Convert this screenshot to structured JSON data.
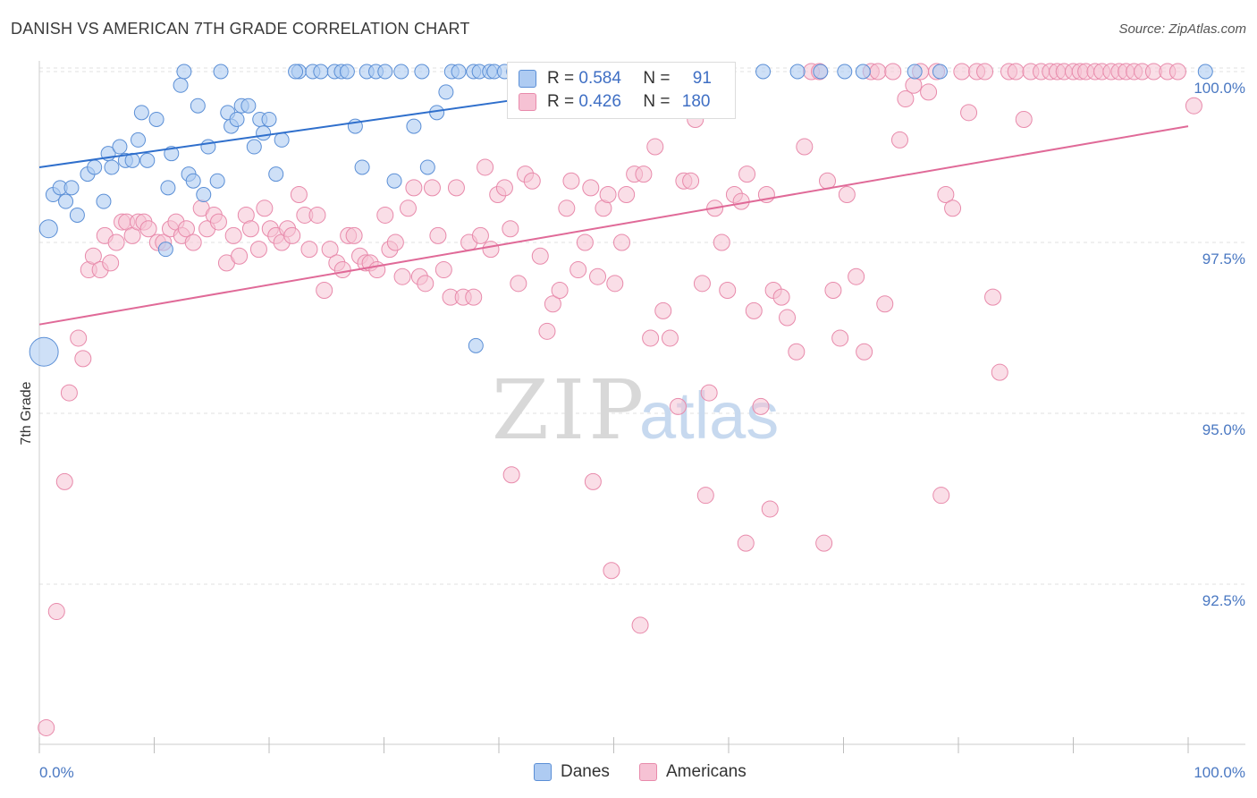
{
  "title": "DANISH VS AMERICAN 7TH GRADE CORRELATION CHART",
  "source": "Source: ZipAtlas.com",
  "watermark": {
    "zip": "ZIP",
    "atlas": "atlas"
  },
  "colors": {
    "danes_fill": "#aecbf2",
    "danes_stroke": "#5b8fd6",
    "danes_line": "#2f6fcc",
    "americans_fill": "#f6c2d4",
    "americans_stroke": "#e88aab",
    "americans_line": "#e06a98",
    "tick_label": "#4a78c2",
    "grid": "#e2e2e2"
  },
  "legend": {
    "rows": [
      {
        "r_label": "R = ",
        "r_value": "0.584",
        "n_label": "N = ",
        "n_value": "91"
      },
      {
        "r_label": "R = ",
        "r_value": "0.426",
        "n_label": "N = ",
        "n_value": "180"
      }
    ]
  },
  "bottom_legend": [
    {
      "label": "Danes"
    },
    {
      "label": "Americans"
    }
  ],
  "chart_data": {
    "type": "scatter",
    "title": "DANISH VS AMERICAN 7TH GRADE CORRELATION CHART",
    "xlabel": "",
    "ylabel": "7th Grade",
    "x_tick_labels": [
      "0.0%",
      "100.0%"
    ],
    "y_tick_labels": [
      "100.0%",
      "97.5%",
      "95.0%",
      "92.5%"
    ],
    "y_ticks": [
      100.0,
      97.5,
      95.0,
      92.5
    ],
    "xlim": [
      0,
      105
    ],
    "ylim": [
      90.2,
      100.2
    ],
    "grid": true,
    "legend_position": "top-center",
    "series": [
      {
        "name": "Danes",
        "r": 0.584,
        "n": 91,
        "trend": [
          [
            0,
            98.6
          ],
          [
            42,
            99.6
          ]
        ],
        "points": [
          [
            0.8,
            97.7
          ],
          [
            1.2,
            98.2
          ],
          [
            1.8,
            98.3
          ],
          [
            2.3,
            98.1
          ],
          [
            2.8,
            98.3
          ],
          [
            3.3,
            97.9
          ],
          [
            4.2,
            98.5
          ],
          [
            4.8,
            98.6
          ],
          [
            5.6,
            98.1
          ],
          [
            6,
            98.8
          ],
          [
            6.3,
            98.6
          ],
          [
            7,
            98.9
          ],
          [
            7.5,
            98.7
          ],
          [
            8.1,
            98.7
          ],
          [
            8.6,
            99.0
          ],
          [
            8.9,
            99.4
          ],
          [
            9.4,
            98.7
          ],
          [
            10.2,
            99.3
          ],
          [
            11.2,
            98.3
          ],
          [
            11.5,
            98.8
          ],
          [
            12.3,
            99.8
          ],
          [
            12.6,
            100
          ],
          [
            13.0,
            98.5
          ],
          [
            13.4,
            98.4
          ],
          [
            13.8,
            99.5
          ],
          [
            14.3,
            98.2
          ],
          [
            14.7,
            98.9
          ],
          [
            15.5,
            98.4
          ],
          [
            15.8,
            100
          ],
          [
            16.4,
            99.4
          ],
          [
            16.7,
            99.2
          ],
          [
            17.2,
            99.3
          ],
          [
            17.6,
            99.5
          ],
          [
            18.2,
            99.5
          ],
          [
            18.7,
            98.9
          ],
          [
            19.2,
            99.3
          ],
          [
            19.5,
            99.1
          ],
          [
            20,
            99.3
          ],
          [
            20.6,
            98.5
          ],
          [
            21.1,
            99.0
          ],
          [
            22.6,
            100
          ],
          [
            22.3,
            100
          ],
          [
            23.8,
            100
          ],
          [
            24.5,
            100
          ],
          [
            25.7,
            100
          ],
          [
            26.3,
            100
          ],
          [
            26.8,
            100
          ],
          [
            27.5,
            99.2
          ],
          [
            28.1,
            98.6
          ],
          [
            28.5,
            100
          ],
          [
            29.3,
            100
          ],
          [
            30.1,
            100
          ],
          [
            30.9,
            98.4
          ],
          [
            31.5,
            100
          ],
          [
            32.6,
            99.2
          ],
          [
            33.3,
            100
          ],
          [
            33.8,
            98.6
          ],
          [
            34.6,
            99.4
          ],
          [
            35.4,
            99.7
          ],
          [
            35.9,
            100
          ],
          [
            36.5,
            100
          ],
          [
            37.8,
            100
          ],
          [
            38.3,
            100
          ],
          [
            39.2,
            100
          ],
          [
            39.6,
            100
          ],
          [
            40.5,
            100
          ],
          [
            41.3,
            100
          ],
          [
            42.5,
            100
          ],
          [
            43.4,
            100
          ],
          [
            43.1,
            100
          ],
          [
            44.0,
            100
          ],
          [
            45.3,
            100
          ],
          [
            46.2,
            100
          ],
          [
            47.1,
            100
          ],
          [
            48.0,
            100
          ],
          [
            49.2,
            100
          ],
          [
            50.6,
            100
          ],
          [
            51.5,
            100
          ],
          [
            53,
            100
          ],
          [
            55,
            100
          ],
          [
            57.5,
            100
          ],
          [
            58.8,
            100
          ],
          [
            63,
            100
          ],
          [
            66,
            100
          ],
          [
            68,
            100
          ],
          [
            70.1,
            100
          ],
          [
            71.7,
            100
          ],
          [
            76.2,
            100
          ],
          [
            78.4,
            100
          ],
          [
            101.5,
            100
          ],
          [
            11.0,
            97.4
          ],
          [
            38.0,
            95.99
          ],
          [
            0.4,
            95.9
          ]
        ]
      },
      {
        "name": "Americans",
        "r": 0.426,
        "n": 180,
        "trend": [
          [
            0,
            96.3
          ],
          [
            100,
            99.2
          ]
        ],
        "points": [
          [
            0.6,
            90.4
          ],
          [
            1.5,
            92.1
          ],
          [
            2.2,
            94.0
          ],
          [
            2.6,
            95.3
          ],
          [
            3.4,
            96.1
          ],
          [
            3.8,
            95.8
          ],
          [
            4.3,
            97.1
          ],
          [
            4.7,
            97.3
          ],
          [
            5.3,
            97.1
          ],
          [
            5.7,
            97.6
          ],
          [
            6.2,
            97.2
          ],
          [
            6.7,
            97.5
          ],
          [
            7.2,
            97.8
          ],
          [
            7.6,
            97.8
          ],
          [
            8.1,
            97.6
          ],
          [
            8.6,
            97.8
          ],
          [
            9.1,
            97.8
          ],
          [
            9.5,
            97.7
          ],
          [
            10.3,
            97.5
          ],
          [
            10.8,
            97.5
          ],
          [
            11.4,
            97.7
          ],
          [
            11.9,
            97.8
          ],
          [
            12.4,
            97.6
          ],
          [
            12.8,
            97.7
          ],
          [
            13.4,
            97.5
          ],
          [
            14.1,
            98.0
          ],
          [
            14.6,
            97.7
          ],
          [
            15.2,
            97.9
          ],
          [
            15.6,
            97.8
          ],
          [
            16.3,
            97.2
          ],
          [
            16.9,
            97.6
          ],
          [
            17.4,
            97.3
          ],
          [
            18.0,
            97.9
          ],
          [
            18.4,
            97.7
          ],
          [
            19.1,
            97.4
          ],
          [
            19.6,
            98.0
          ],
          [
            20.1,
            97.7
          ],
          [
            20.6,
            97.6
          ],
          [
            21.1,
            97.5
          ],
          [
            21.6,
            97.7
          ],
          [
            22.0,
            97.6
          ],
          [
            22.6,
            98.2
          ],
          [
            23.1,
            97.9
          ],
          [
            23.5,
            97.4
          ],
          [
            24.2,
            97.9
          ],
          [
            24.8,
            96.8
          ],
          [
            25.3,
            97.4
          ],
          [
            25.9,
            97.2
          ],
          [
            26.4,
            97.1
          ],
          [
            26.9,
            97.6
          ],
          [
            27.4,
            97.6
          ],
          [
            27.9,
            97.3
          ],
          [
            28.4,
            97.2
          ],
          [
            28.8,
            97.2
          ],
          [
            29.4,
            97.1
          ],
          [
            30.1,
            97.9
          ],
          [
            30.5,
            97.4
          ],
          [
            31.0,
            97.5
          ],
          [
            31.6,
            97.0
          ],
          [
            32.1,
            98.0
          ],
          [
            32.6,
            98.3
          ],
          [
            33.1,
            97.0
          ],
          [
            33.6,
            96.9
          ],
          [
            34.2,
            98.3
          ],
          [
            34.7,
            97.6
          ],
          [
            35.2,
            97.1
          ],
          [
            35.8,
            96.7
          ],
          [
            36.3,
            98.3
          ],
          [
            36.9,
            96.7
          ],
          [
            37.4,
            97.5
          ],
          [
            37.8,
            96.7
          ],
          [
            38.4,
            97.6
          ],
          [
            38.8,
            98.6
          ],
          [
            39.3,
            97.4
          ],
          [
            39.9,
            98.2
          ],
          [
            40.5,
            98.3
          ],
          [
            41.0,
            97.7
          ],
          [
            41.7,
            96.9
          ],
          [
            42.3,
            98.5
          ],
          [
            42.9,
            98.4
          ],
          [
            43.6,
            97.3
          ],
          [
            44.2,
            96.2
          ],
          [
            44.7,
            96.6
          ],
          [
            45.3,
            96.8
          ],
          [
            45.9,
            98.0
          ],
          [
            46.3,
            98.4
          ],
          [
            46.9,
            97.1
          ],
          [
            47.5,
            97.5
          ],
          [
            48.0,
            98.3
          ],
          [
            48.6,
            97.0
          ],
          [
            49.1,
            98.0
          ],
          [
            49.5,
            98.2
          ],
          [
            50.1,
            96.9
          ],
          [
            50.7,
            97.5
          ],
          [
            51.1,
            98.2
          ],
          [
            51.8,
            98.5
          ],
          [
            52.6,
            98.5
          ],
          [
            53.2,
            96.1
          ],
          [
            53.6,
            98.9
          ],
          [
            54.3,
            96.5
          ],
          [
            54.9,
            96.1
          ],
          [
            55.6,
            95.1
          ],
          [
            56.1,
            98.4
          ],
          [
            56.7,
            98.4
          ],
          [
            57.1,
            99.3
          ],
          [
            57.7,
            96.9
          ],
          [
            58.3,
            95.3
          ],
          [
            58.8,
            98.0
          ],
          [
            59.4,
            97.5
          ],
          [
            59.9,
            96.8
          ],
          [
            60.5,
            98.2
          ],
          [
            61.1,
            98.1
          ],
          [
            61.6,
            98.5
          ],
          [
            62.2,
            96.5
          ],
          [
            62.8,
            95.1
          ],
          [
            63.3,
            98.2
          ],
          [
            63.9,
            96.8
          ],
          [
            64.6,
            96.7
          ],
          [
            65.1,
            96.4
          ],
          [
            65.9,
            95.9
          ],
          [
            66.6,
            98.9
          ],
          [
            67.2,
            100
          ],
          [
            67.9,
            100
          ],
          [
            68.6,
            98.4
          ],
          [
            69.1,
            96.8
          ],
          [
            69.7,
            96.1
          ],
          [
            70.3,
            98.2
          ],
          [
            71.1,
            97.0
          ],
          [
            71.8,
            95.9
          ],
          [
            72.4,
            100
          ],
          [
            73.0,
            100
          ],
          [
            73.6,
            96.6
          ],
          [
            74.3,
            100
          ],
          [
            74.9,
            99.0
          ],
          [
            75.4,
            99.6
          ],
          [
            76.1,
            99.8
          ],
          [
            76.7,
            100
          ],
          [
            77.4,
            99.7
          ],
          [
            78.1,
            100
          ],
          [
            78.9,
            98.2
          ],
          [
            79.5,
            98.0
          ],
          [
            80.3,
            100
          ],
          [
            80.9,
            99.4
          ],
          [
            81.6,
            100
          ],
          [
            82.3,
            100
          ],
          [
            83.0,
            96.7
          ],
          [
            83.6,
            95.6
          ],
          [
            84.4,
            100
          ],
          [
            85.0,
            100
          ],
          [
            85.7,
            99.3
          ],
          [
            86.3,
            100
          ],
          [
            87.2,
            100
          ],
          [
            88.0,
            100
          ],
          [
            88.6,
            100
          ],
          [
            89.2,
            100
          ],
          [
            90.0,
            100
          ],
          [
            90.6,
            100
          ],
          [
            91.1,
            100
          ],
          [
            91.9,
            100
          ],
          [
            92.5,
            100
          ],
          [
            93.3,
            100
          ],
          [
            94.0,
            100
          ],
          [
            94.6,
            100
          ],
          [
            95.3,
            100
          ],
          [
            96.0,
            100
          ],
          [
            97.0,
            100
          ],
          [
            98.2,
            100
          ],
          [
            99.1,
            100
          ],
          [
            100.5,
            99.5
          ],
          [
            48.2,
            94.0
          ],
          [
            49.8,
            92.7
          ],
          [
            52.3,
            91.9
          ],
          [
            58.0,
            93.8
          ],
          [
            61.5,
            93.1
          ],
          [
            63.6,
            93.6
          ],
          [
            68.3,
            93.1
          ],
          [
            78.5,
            93.8
          ],
          [
            41.1,
            94.1
          ]
        ]
      }
    ]
  }
}
